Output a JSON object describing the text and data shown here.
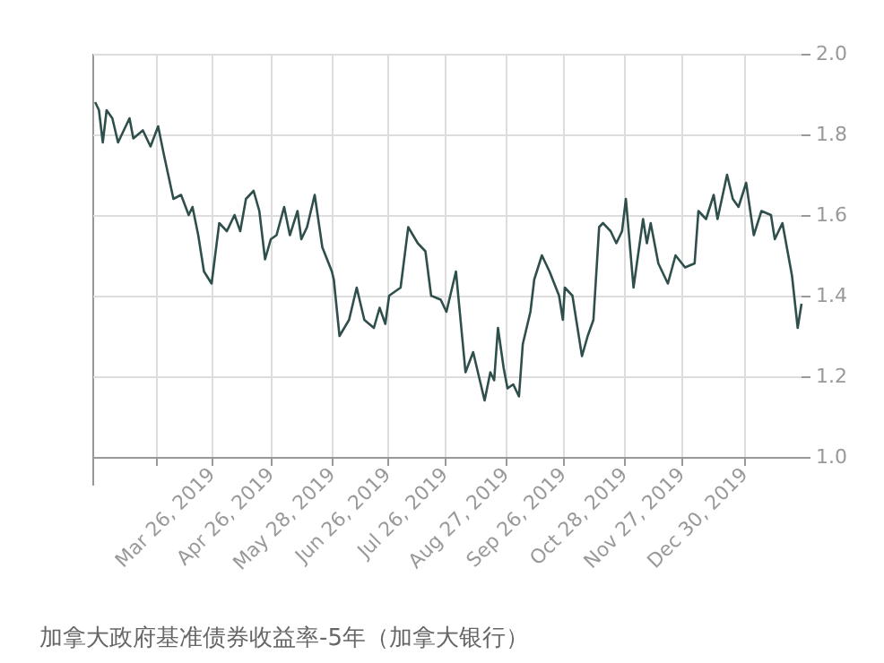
{
  "chart_data": {
    "type": "line",
    "annotations": [
      "加拿大政府基准债券收益率-5年（加拿大银行）"
    ],
    "x": [
      "2019-01-24",
      "2019-01-26",
      "2019-01-28",
      "2019-01-30",
      "2019-02-02",
      "2019-02-05",
      "2019-02-11",
      "2019-02-13",
      "2019-02-18",
      "2019-02-22",
      "2019-02-26",
      "2019-03-01",
      "2019-03-06",
      "2019-03-10",
      "2019-03-14",
      "2019-03-16",
      "2019-03-19",
      "2019-03-22",
      "2019-03-26",
      "2019-03-30",
      "2019-04-03",
      "2019-04-07",
      "2019-04-10",
      "2019-04-13",
      "2019-04-17",
      "2019-04-20",
      "2019-04-23",
      "2019-04-26",
      "2019-04-29",
      "2019-05-03",
      "2019-05-06",
      "2019-05-10",
      "2019-05-12",
      "2019-05-15",
      "2019-05-19",
      "2019-05-23",
      "2019-05-28",
      "2019-05-29",
      "2019-06-01",
      "2019-06-06",
      "2019-06-10",
      "2019-06-14",
      "2019-06-19",
      "2019-06-22",
      "2019-06-25",
      "2019-06-27",
      "2019-07-03",
      "2019-07-07",
      "2019-07-12",
      "2019-07-16",
      "2019-07-19",
      "2019-07-24",
      "2019-07-27",
      "2019-08-01",
      "2019-08-03",
      "2019-08-06",
      "2019-08-10",
      "2019-08-13",
      "2019-08-16",
      "2019-08-19",
      "2019-08-21",
      "2019-08-23",
      "2019-08-26",
      "2019-08-28",
      "2019-08-31",
      "2019-09-03",
      "2019-09-05",
      "2019-09-09",
      "2019-09-11",
      "2019-09-15",
      "2019-09-19",
      "2019-09-24",
      "2019-09-26",
      "2019-09-27",
      "2019-10-01",
      "2019-10-03",
      "2019-10-06",
      "2019-10-09",
      "2019-10-12",
      "2019-10-15",
      "2019-10-17",
      "2019-10-21",
      "2019-10-24",
      "2019-10-27",
      "2019-10-29",
      "2019-11-02",
      "2019-11-07",
      "2019-11-09",
      "2019-11-11",
      "2019-11-15",
      "2019-11-20",
      "2019-11-24",
      "2019-11-29",
      "2019-12-04",
      "2019-12-06",
      "2019-12-10",
      "2019-12-14",
      "2019-12-16",
      "2019-12-21",
      "2019-12-24",
      "2019-12-27",
      "2019-12-31",
      "2020-01-04",
      "2020-01-08",
      "2020-01-13",
      "2020-01-15",
      "2020-01-19",
      "2020-01-24",
      "2020-01-27",
      "2020-01-29"
    ],
    "series": [
      {
        "color": "#2f4f4c",
        "values": [
          1.88,
          1.86,
          1.78,
          1.86,
          1.84,
          1.78,
          1.84,
          1.79,
          1.81,
          1.77,
          1.82,
          1.75,
          1.64,
          1.65,
          1.6,
          1.62,
          1.55,
          1.46,
          1.43,
          1.58,
          1.56,
          1.6,
          1.56,
          1.64,
          1.66,
          1.61,
          1.49,
          1.54,
          1.55,
          1.62,
          1.55,
          1.61,
          1.54,
          1.57,
          1.65,
          1.52,
          1.46,
          1.44,
          1.3,
          1.34,
          1.42,
          1.34,
          1.32,
          1.37,
          1.33,
          1.4,
          1.42,
          1.57,
          1.53,
          1.51,
          1.4,
          1.39,
          1.36,
          1.46,
          1.36,
          1.21,
          1.26,
          1.2,
          1.14,
          1.21,
          1.19,
          1.32,
          1.22,
          1.17,
          1.18,
          1.15,
          1.28,
          1.36,
          1.44,
          1.5,
          1.46,
          1.4,
          1.34,
          1.42,
          1.4,
          1.34,
          1.25,
          1.3,
          1.34,
          1.57,
          1.58,
          1.56,
          1.53,
          1.56,
          1.64,
          1.42,
          1.59,
          1.53,
          1.58,
          1.48,
          1.43,
          1.5,
          1.47,
          1.48,
          1.61,
          1.59,
          1.65,
          1.59,
          1.7,
          1.64,
          1.62,
          1.68,
          1.55,
          1.61,
          1.6,
          1.54,
          1.58,
          1.45,
          1.32,
          1.38
        ]
      }
    ],
    "xlim": [
      "2019-01-23",
      "2020-01-29"
    ],
    "xticks": [
      {
        "value": "2019-02-25",
        "label": null
      },
      {
        "value": "2019-03-26",
        "label": "Mar 26, 2019"
      },
      {
        "value": "2019-04-26",
        "label": "Apr 26, 2019"
      },
      {
        "value": "2019-05-28",
        "label": "May 28, 2019"
      },
      {
        "value": "2019-06-26",
        "label": "Jun 26, 2019"
      },
      {
        "value": "2019-07-26",
        "label": "Jul 26, 2019"
      },
      {
        "value": "2019-08-27",
        "label": "Aug 27, 2019"
      },
      {
        "value": "2019-09-26",
        "label": "Sep 26, 2019"
      },
      {
        "value": "2019-10-28",
        "label": "Oct 28, 2019"
      },
      {
        "value": "2019-11-27",
        "label": "Nov 27, 2019"
      },
      {
        "value": "2019-12-30",
        "label": "Dec 30, 2019"
      }
    ],
    "ylim": [
      1.0,
      2.0
    ],
    "yticks": [
      {
        "value": 1.0,
        "label": "1.0"
      },
      1.2,
      1.4,
      1.6,
      1.8,
      {
        "value": 2.0,
        "label": "2.0"
      }
    ],
    "grid": true,
    "marker": "none",
    "line_style": "solid"
  }
}
